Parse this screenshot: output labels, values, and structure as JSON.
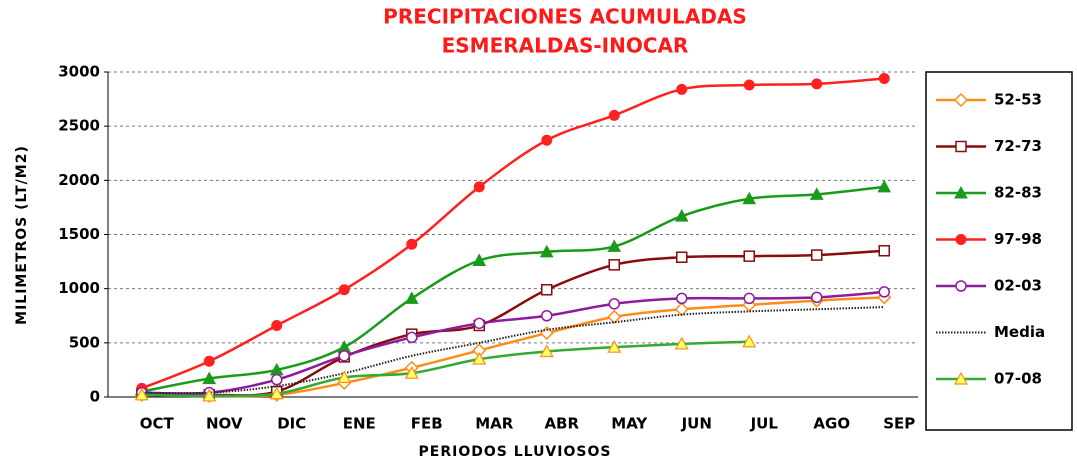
{
  "chart_data": {
    "type": "line",
    "title": [
      "PRECIPITACIONES ACUMULADAS",
      "ESMERALDAS-INOCAR"
    ],
    "x_label": "PERIODOS LLUVIOSOS",
    "y_label": "MILIMETROS (LT/M2)",
    "categories": [
      "OCT",
      "NOV",
      "DIC",
      "ENE",
      "FEB",
      "MAR",
      "ABR",
      "MAY",
      "JUN",
      "JUL",
      "AGO",
      "SEP"
    ],
    "ylim": [
      0,
      3000
    ],
    "yticks": [
      0,
      500,
      1000,
      1500,
      2000,
      2500,
      3000
    ],
    "grid": true,
    "legend": "right",
    "series": [
      {
        "name": "52-53",
        "color": "#ff8c1a",
        "marker": "diamond-open",
        "values": [
          20,
          10,
          20,
          130,
          270,
          430,
          590,
          740,
          810,
          850,
          890,
          920
        ]
      },
      {
        "name": "72-73",
        "color": "#8b0a0a",
        "marker": "square-open",
        "values": [
          30,
          20,
          50,
          370,
          580,
          660,
          990,
          1220,
          1290,
          1300,
          1310,
          1350
        ]
      },
      {
        "name": "82-83",
        "color": "#1a9a1a",
        "marker": "triangle",
        "values": [
          50,
          170,
          250,
          460,
          910,
          1260,
          1340,
          1390,
          1670,
          1830,
          1870,
          1940
        ]
      },
      {
        "name": "97-98",
        "color": "#ff2020",
        "marker": "circle",
        "values": [
          80,
          330,
          660,
          990,
          1410,
          1940,
          2370,
          2600,
          2840,
          2880,
          2890,
          2940
        ]
      },
      {
        "name": "02-03",
        "color": "#8e1a9e",
        "marker": "circle-open",
        "values": [
          40,
          40,
          160,
          380,
          550,
          680,
          750,
          860,
          910,
          910,
          920,
          970
        ]
      },
      {
        "name": "Media",
        "color": "#222222",
        "marker": "none",
        "dash": "dotted",
        "values": [
          40,
          40,
          100,
          220,
          380,
          500,
          620,
          690,
          760,
          790,
          810,
          830
        ]
      },
      {
        "name": "07-08",
        "color": "#33aa33",
        "marker": "triangle-yellow",
        "values": [
          20,
          10,
          30,
          180,
          220,
          350,
          420,
          460,
          490,
          510,
          null,
          null
        ]
      }
    ]
  }
}
